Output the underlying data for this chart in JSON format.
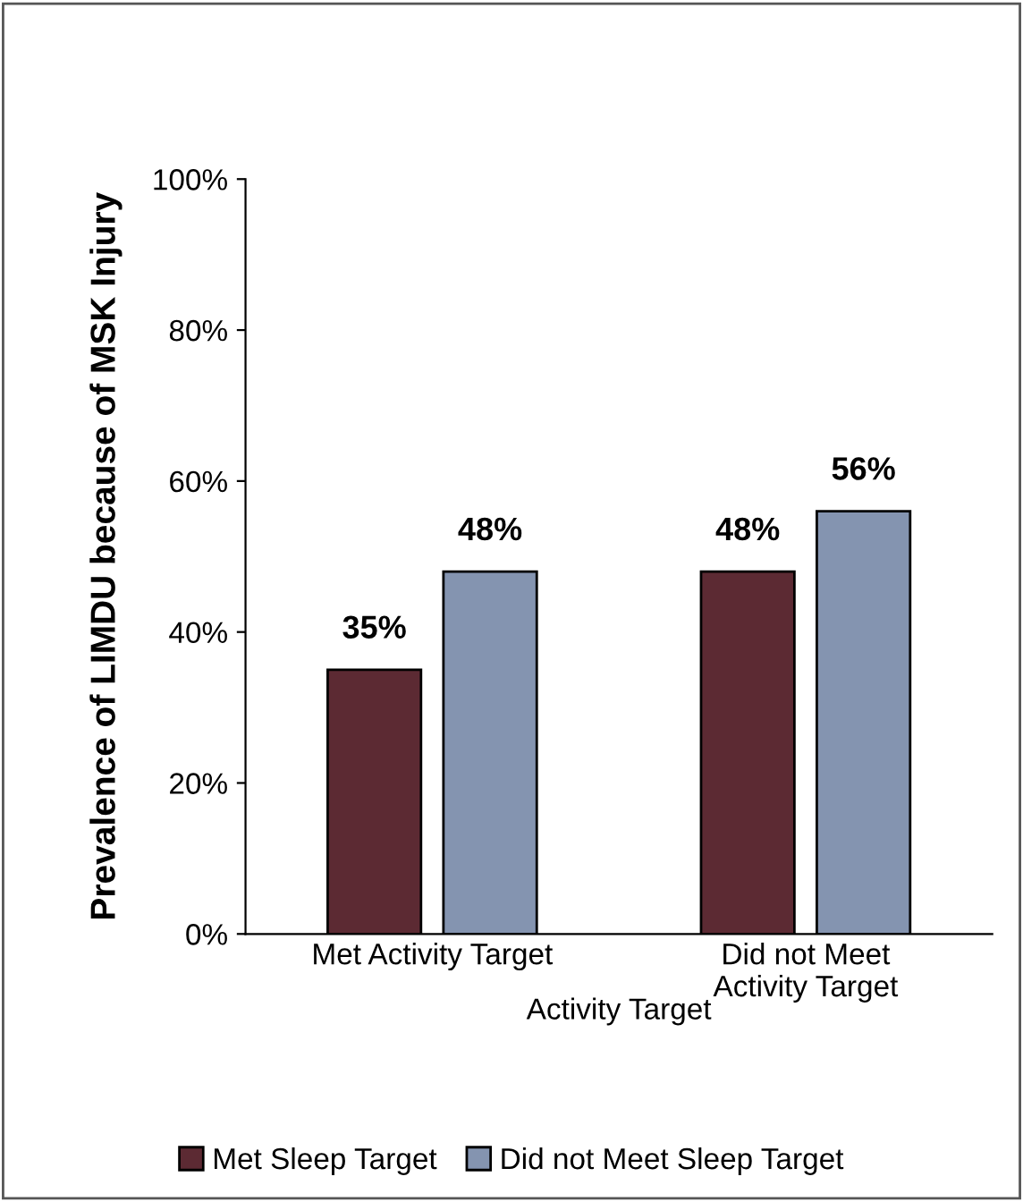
{
  "chart_data": {
    "type": "bar",
    "xlabel": "Activity Target",
    "ylabel": "Prevalence of LIMDU because of MSK Injury",
    "categories": [
      "Met Activity Target",
      "Did not Meet Activity Target"
    ],
    "series": [
      {
        "name": "Met Sleep Target",
        "color": "#5c2a33",
        "values": [
          35,
          48
        ],
        "value_labels": [
          "35%",
          "48%"
        ]
      },
      {
        "name": "Did not Meet Sleep Target",
        "color": "#8494b0",
        "values": [
          48,
          56
        ],
        "value_labels": [
          "48%",
          "56%"
        ]
      }
    ],
    "ylim": [
      0,
      100
    ],
    "yticks": [
      {
        "value": 0,
        "label": "0%"
      },
      {
        "value": 20,
        "label": "20%"
      },
      {
        "value": 40,
        "label": "40%"
      },
      {
        "value": 60,
        "label": "60%"
      },
      {
        "value": 80,
        "label": "80%"
      },
      {
        "value": 100,
        "label": "100%"
      }
    ],
    "legend": "bottom"
  }
}
